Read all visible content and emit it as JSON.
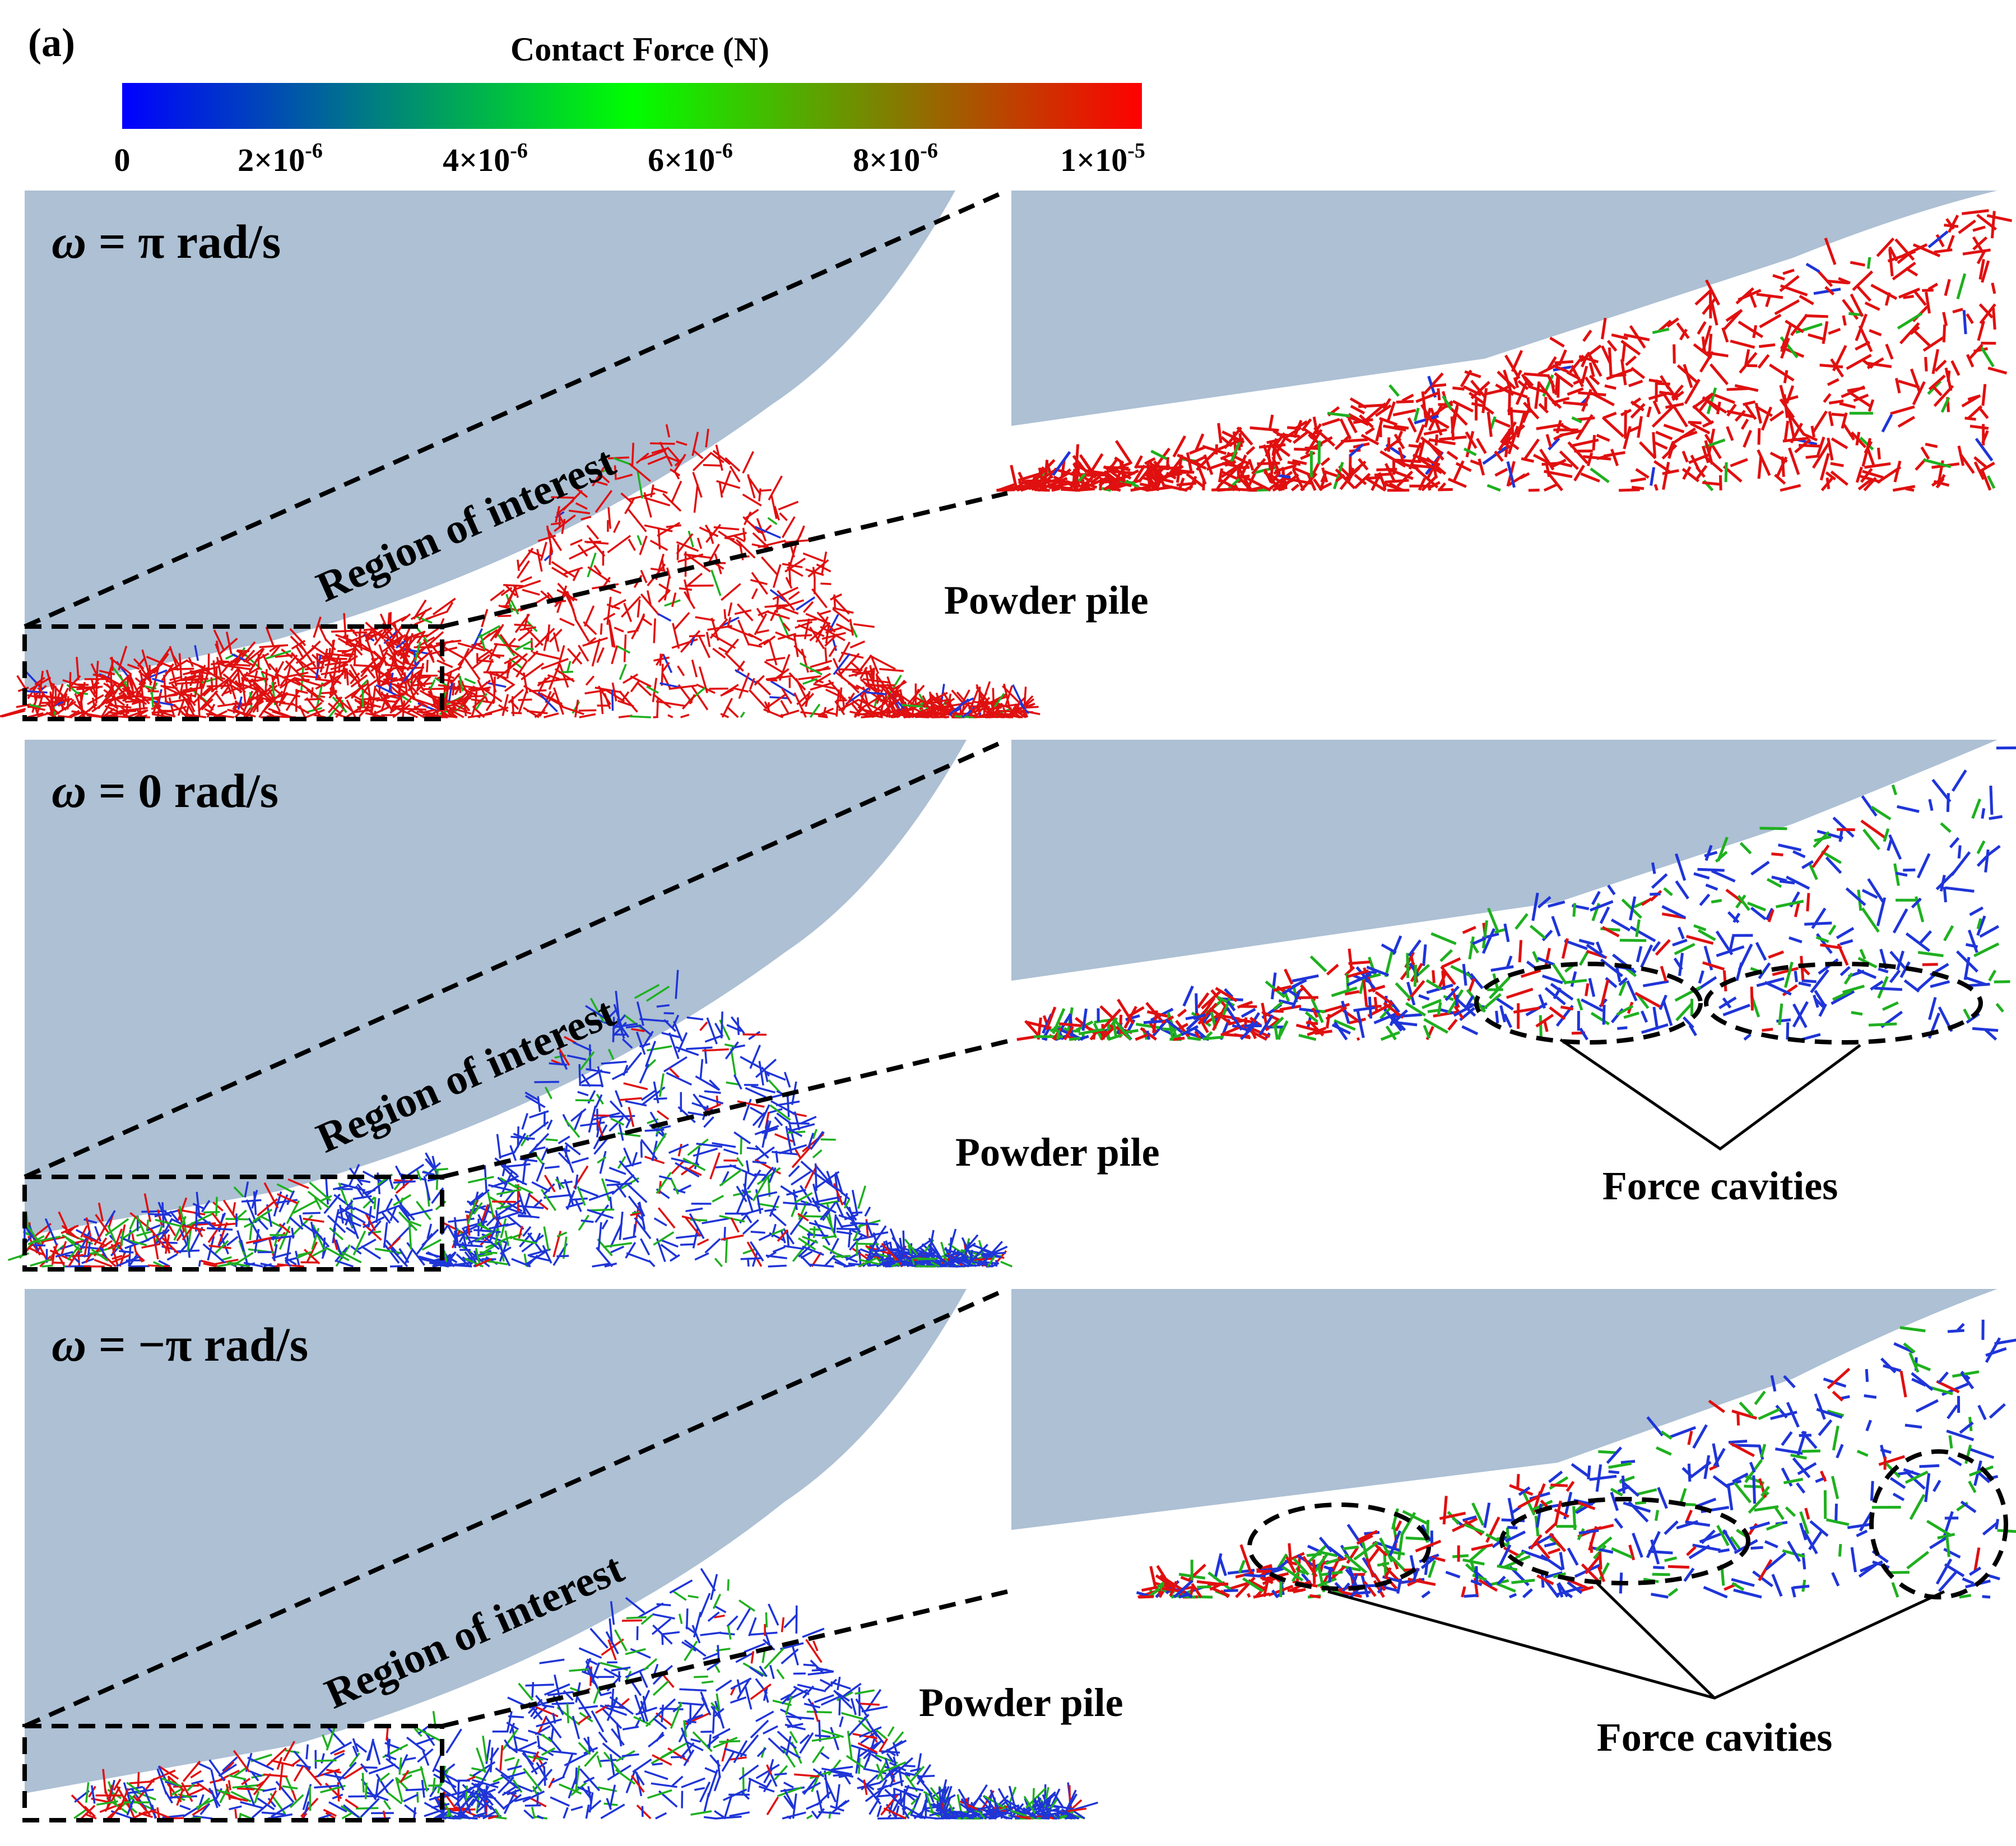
{
  "figure": {
    "panel_label": "(a)",
    "colorbar": {
      "title": "Contact Force (N)",
      "ticks": [
        {
          "base": "0",
          "exp": ""
        },
        {
          "base": "2×10",
          "exp": "-6"
        },
        {
          "base": "4×10",
          "exp": "-6"
        },
        {
          "base": "6×10",
          "exp": "-6"
        },
        {
          "base": "8×10",
          "exp": "-6"
        },
        {
          "base": "1×10",
          "exp": "-5"
        }
      ],
      "stops": [
        "#0000ff",
        "#00ff00",
        "#ff0000"
      ]
    },
    "colors": {
      "wall": "#adc0d4",
      "low_force": "#1f35d8",
      "mid_force": "#1fb01f",
      "high_force": "#e01010"
    },
    "rows": [
      {
        "omega_prefix": "ω",
        "omega_value": " = π rad/s",
        "region_label": "Region of interest",
        "pile_label": "Powder pile",
        "callout": "",
        "force_level": "high"
      },
      {
        "omega_prefix": "ω",
        "omega_value": " = 0 rad/s",
        "region_label": "Region of interest",
        "pile_label": "Powder pile",
        "callout": "Force cavities",
        "force_level": "mixed"
      },
      {
        "omega_prefix": "ω",
        "omega_value": " = −π rad/s",
        "region_label": "Region of interest",
        "pile_label": "Powder pile",
        "callout": "Force cavities",
        "force_level": "low"
      }
    ]
  }
}
